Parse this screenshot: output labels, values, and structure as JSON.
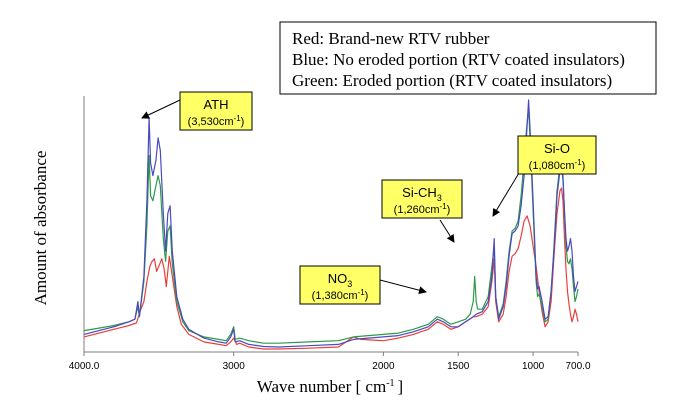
{
  "chart_data": {
    "type": "line",
    "title": "",
    "xlabel": "Wave number [ cm",
    "xlabel_sup": "-1",
    "xlabel_end": "]",
    "ylabel": "Amount of absorbance",
    "xlim": [
      4000,
      700
    ],
    "ylim": [
      0,
      1
    ],
    "x_ticks": [
      {
        "value": 4000,
        "label": "4000.0"
      },
      {
        "value": 3000,
        "label": "3000"
      },
      {
        "value": 2000,
        "label": "2000"
      },
      {
        "value": 1500,
        "label": "1500"
      },
      {
        "value": 1000,
        "label": "1000"
      },
      {
        "value": 700,
        "label": "700.0"
      }
    ],
    "legend": {
      "position": "top-right",
      "entries": [
        "Red: Brand-new RTV rubber",
        "Blue: No eroded portion (RTV coated insulators)",
        "Green: Eroded portion (RTV coated insulators)"
      ]
    },
    "series": [
      {
        "name": "Red: Brand-new RTV rubber",
        "color": "#e8403c",
        "points": [
          [
            4000,
            0.06
          ],
          [
            3900,
            0.075
          ],
          [
            3800,
            0.09
          ],
          [
            3700,
            0.105
          ],
          [
            3650,
            0.115
          ],
          [
            3620,
            0.17
          ],
          [
            3600,
            0.2
          ],
          [
            3580,
            0.28
          ],
          [
            3560,
            0.34
          ],
          [
            3545,
            0.36
          ],
          [
            3530,
            0.37
          ],
          [
            3515,
            0.32
          ],
          [
            3500,
            0.34
          ],
          [
            3480,
            0.37
          ],
          [
            3465,
            0.33
          ],
          [
            3450,
            0.26
          ],
          [
            3430,
            0.38
          ],
          [
            3410,
            0.3
          ],
          [
            3380,
            0.18
          ],
          [
            3350,
            0.11
          ],
          [
            3300,
            0.07
          ],
          [
            3200,
            0.04
          ],
          [
            3100,
            0.03
          ],
          [
            3050,
            0.025
          ],
          [
            3020,
            0.04
          ],
          [
            3000,
            0.055
          ],
          [
            2980,
            0.03
          ],
          [
            2960,
            0.035
          ],
          [
            2900,
            0.02
          ],
          [
            2800,
            0.012
          ],
          [
            2700,
            0.012
          ],
          [
            2500,
            0.015
          ],
          [
            2300,
            0.02
          ],
          [
            2200,
            0.06
          ],
          [
            2150,
            0.05
          ],
          [
            2000,
            0.045
          ],
          [
            1900,
            0.055
          ],
          [
            1800,
            0.07
          ],
          [
            1700,
            0.09
          ],
          [
            1640,
            0.12
          ],
          [
            1600,
            0.11
          ],
          [
            1550,
            0.09
          ],
          [
            1500,
            0.1
          ],
          [
            1450,
            0.12
          ],
          [
            1400,
            0.14
          ],
          [
            1380,
            0.14
          ],
          [
            1340,
            0.15
          ],
          [
            1300,
            0.18
          ],
          [
            1275,
            0.28
          ],
          [
            1260,
            0.37
          ],
          [
            1250,
            0.2
          ],
          [
            1230,
            0.12
          ],
          [
            1200,
            0.15
          ],
          [
            1180,
            0.22
          ],
          [
            1160,
            0.32
          ],
          [
            1140,
            0.38
          ],
          [
            1120,
            0.39
          ],
          [
            1100,
            0.41
          ],
          [
            1080,
            0.46
          ],
          [
            1060,
            0.52
          ],
          [
            1040,
            0.54
          ],
          [
            1020,
            0.5
          ],
          [
            1000,
            0.42
          ],
          [
            980,
            0.34
          ],
          [
            960,
            0.24
          ],
          [
            940,
            0.16
          ],
          [
            920,
            0.1
          ],
          [
            900,
            0.12
          ],
          [
            880,
            0.2
          ],
          [
            860,
            0.38
          ],
          [
            840,
            0.55
          ],
          [
            820,
            0.64
          ],
          [
            810,
            0.65
          ],
          [
            800,
            0.6
          ],
          [
            790,
            0.45
          ],
          [
            780,
            0.33
          ],
          [
            770,
            0.24
          ],
          [
            760,
            0.19
          ],
          [
            750,
            0.15
          ],
          [
            740,
            0.12
          ],
          [
            730,
            0.14
          ],
          [
            720,
            0.17
          ],
          [
            710,
            0.15
          ],
          [
            700,
            0.12
          ]
        ]
      },
      {
        "name": "Blue: No eroded portion (RTV coated insulators)",
        "color": "#4a4ac0",
        "points": [
          [
            4000,
            0.07
          ],
          [
            3900,
            0.085
          ],
          [
            3800,
            0.1
          ],
          [
            3700,
            0.12
          ],
          [
            3660,
            0.13
          ],
          [
            3640,
            0.2
          ],
          [
            3630,
            0.14
          ],
          [
            3600,
            0.3
          ],
          [
            3580,
            0.6
          ],
          [
            3565,
            0.93
          ],
          [
            3555,
            0.75
          ],
          [
            3540,
            0.7
          ],
          [
            3520,
            0.76
          ],
          [
            3505,
            0.85
          ],
          [
            3490,
            0.8
          ],
          [
            3470,
            0.55
          ],
          [
            3455,
            0.4
          ],
          [
            3440,
            0.55
          ],
          [
            3425,
            0.58
          ],
          [
            3410,
            0.4
          ],
          [
            3380,
            0.22
          ],
          [
            3340,
            0.13
          ],
          [
            3300,
            0.09
          ],
          [
            3200,
            0.055
          ],
          [
            3100,
            0.04
          ],
          [
            3050,
            0.035
          ],
          [
            3020,
            0.06
          ],
          [
            3000,
            0.09
          ],
          [
            2990,
            0.04
          ],
          [
            2960,
            0.045
          ],
          [
            2900,
            0.03
          ],
          [
            2800,
            0.022
          ],
          [
            2700,
            0.02
          ],
          [
            2500,
            0.025
          ],
          [
            2300,
            0.03
          ],
          [
            2200,
            0.05
          ],
          [
            2000,
            0.06
          ],
          [
            1900,
            0.065
          ],
          [
            1800,
            0.08
          ],
          [
            1700,
            0.1
          ],
          [
            1640,
            0.13
          ],
          [
            1600,
            0.12
          ],
          [
            1550,
            0.1
          ],
          [
            1500,
            0.1
          ],
          [
            1450,
            0.12
          ],
          [
            1400,
            0.14
          ],
          [
            1380,
            0.15
          ],
          [
            1340,
            0.16
          ],
          [
            1300,
            0.2
          ],
          [
            1275,
            0.3
          ],
          [
            1260,
            0.45
          ],
          [
            1250,
            0.22
          ],
          [
            1230,
            0.13
          ],
          [
            1200,
            0.18
          ],
          [
            1180,
            0.26
          ],
          [
            1160,
            0.38
          ],
          [
            1140,
            0.47
          ],
          [
            1120,
            0.48
          ],
          [
            1100,
            0.5
          ],
          [
            1080,
            0.58
          ],
          [
            1060,
            0.7
          ],
          [
            1045,
            0.85
          ],
          [
            1030,
            1.0
          ],
          [
            1020,
            0.88
          ],
          [
            1000,
            0.6
          ],
          [
            980,
            0.3
          ],
          [
            970,
            0.25
          ],
          [
            960,
            0.26
          ],
          [
            940,
            0.2
          ],
          [
            920,
            0.13
          ],
          [
            900,
            0.14
          ],
          [
            880,
            0.24
          ],
          [
            860,
            0.4
          ],
          [
            840,
            0.62
          ],
          [
            820,
            0.72
          ],
          [
            810,
            0.74
          ],
          [
            800,
            0.68
          ],
          [
            790,
            0.56
          ],
          [
            780,
            0.45
          ],
          [
            770,
            0.4
          ],
          [
            760,
            0.42
          ],
          [
            750,
            0.45
          ],
          [
            740,
            0.4
          ],
          [
            730,
            0.3
          ],
          [
            720,
            0.24
          ],
          [
            710,
            0.26
          ],
          [
            700,
            0.28
          ]
        ]
      },
      {
        "name": "Green: Eroded portion (RTV coated insulators)",
        "color": "#2d9a4a",
        "points": [
          [
            4000,
            0.085
          ],
          [
            3900,
            0.095
          ],
          [
            3800,
            0.105
          ],
          [
            3700,
            0.12
          ],
          [
            3660,
            0.13
          ],
          [
            3640,
            0.18
          ],
          [
            3630,
            0.14
          ],
          [
            3600,
            0.28
          ],
          [
            3580,
            0.5
          ],
          [
            3565,
            0.78
          ],
          [
            3555,
            0.62
          ],
          [
            3540,
            0.6
          ],
          [
            3520,
            0.66
          ],
          [
            3505,
            0.7
          ],
          [
            3490,
            0.66
          ],
          [
            3470,
            0.45
          ],
          [
            3455,
            0.36
          ],
          [
            3440,
            0.48
          ],
          [
            3425,
            0.5
          ],
          [
            3410,
            0.35
          ],
          [
            3380,
            0.2
          ],
          [
            3340,
            0.12
          ],
          [
            3300,
            0.085
          ],
          [
            3200,
            0.06
          ],
          [
            3100,
            0.05
          ],
          [
            3050,
            0.045
          ],
          [
            3020,
            0.07
          ],
          [
            3000,
            0.1
          ],
          [
            2990,
            0.05
          ],
          [
            2960,
            0.055
          ],
          [
            2900,
            0.045
          ],
          [
            2800,
            0.035
          ],
          [
            2700,
            0.035
          ],
          [
            2500,
            0.04
          ],
          [
            2300,
            0.045
          ],
          [
            2200,
            0.06
          ],
          [
            2000,
            0.07
          ],
          [
            1900,
            0.075
          ],
          [
            1800,
            0.09
          ],
          [
            1700,
            0.11
          ],
          [
            1640,
            0.14
          ],
          [
            1600,
            0.13
          ],
          [
            1550,
            0.11
          ],
          [
            1500,
            0.12
          ],
          [
            1450,
            0.13
          ],
          [
            1420,
            0.15
          ],
          [
            1400,
            0.2
          ],
          [
            1390,
            0.3
          ],
          [
            1380,
            0.2
          ],
          [
            1370,
            0.17
          ],
          [
            1340,
            0.17
          ],
          [
            1300,
            0.22
          ],
          [
            1275,
            0.34
          ],
          [
            1260,
            0.42
          ],
          [
            1250,
            0.22
          ],
          [
            1230,
            0.14
          ],
          [
            1200,
            0.19
          ],
          [
            1180,
            0.28
          ],
          [
            1160,
            0.4
          ],
          [
            1140,
            0.48
          ],
          [
            1120,
            0.49
          ],
          [
            1100,
            0.52
          ],
          [
            1080,
            0.62
          ],
          [
            1060,
            0.76
          ],
          [
            1045,
            0.88
          ],
          [
            1030,
            0.97
          ],
          [
            1020,
            0.84
          ],
          [
            1000,
            0.56
          ],
          [
            980,
            0.28
          ],
          [
            970,
            0.22
          ],
          [
            960,
            0.23
          ],
          [
            940,
            0.18
          ],
          [
            920,
            0.12
          ],
          [
            900,
            0.13
          ],
          [
            880,
            0.24
          ],
          [
            860,
            0.42
          ],
          [
            840,
            0.64
          ],
          [
            820,
            0.74
          ],
          [
            810,
            0.76
          ],
          [
            800,
            0.7
          ],
          [
            790,
            0.55
          ],
          [
            780,
            0.42
          ],
          [
            770,
            0.36
          ],
          [
            760,
            0.35
          ],
          [
            750,
            0.37
          ],
          [
            740,
            0.33
          ],
          [
            730,
            0.26
          ],
          [
            720,
            0.2
          ],
          [
            710,
            0.22
          ],
          [
            700,
            0.25
          ]
        ]
      }
    ],
    "annotations": [
      {
        "id": "ath",
        "line1": "ATH",
        "line2_base": "(3,530cm",
        "line2_sup": "-1",
        "line2_end": ")",
        "x": 3530
      },
      {
        "id": "no3",
        "line1_base": "NO",
        "line1_sub": "3",
        "line2_base": "(1,380cm",
        "line2_sup": "-1",
        "line2_end": ")",
        "x": 1380
      },
      {
        "id": "sich3",
        "line1_base": "Si-CH",
        "line1_sub": "3",
        "line2_base": "(1,260cm",
        "line2_sup": "-1",
        "line2_end": ")",
        "x": 1260
      },
      {
        "id": "sio",
        "line1": "Si-O",
        "line2_base": "(1,080cm",
        "line2_sup": "-1",
        "line2_end": ")",
        "x": 1080
      }
    ],
    "grid": false
  },
  "colors": {
    "annotation_fill": "#ffff66",
    "axis": "#7f7f7f"
  }
}
